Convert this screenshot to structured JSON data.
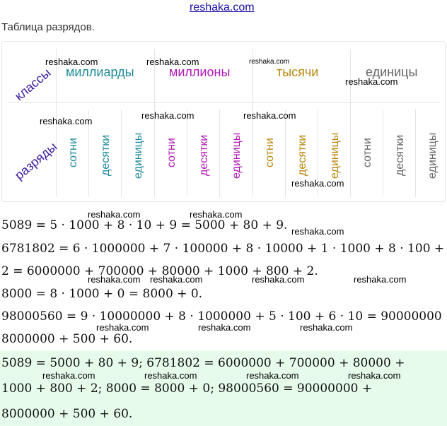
{
  "site": "reshaka.com",
  "caption": "Таблица разрядов.",
  "table": {
    "row_classes": "классы",
    "row_ranks": "разряды",
    "classes": [
      {
        "name": "миллиарды",
        "color": "#1e8a9b"
      },
      {
        "name": "миллионы",
        "color": "#b21ab5"
      },
      {
        "name": "тысячи",
        "color": "#b8860b"
      },
      {
        "name": "единицы",
        "color": "#666666"
      }
    ],
    "ranks": [
      "сотни",
      "десятки",
      "единицы"
    ]
  },
  "watermark": "reshaka.com",
  "lines": [
    "5089 = 5 · 1000 + 8 · 10 + 9 = 5000 + 80 + 9.",
    "6781802 = 6 · 1000000 + 7 · 100000 + 8 · 10000 + 1 · 1000 + 8 · 100 +",
    "2 = 6000000 + 700000 + 80000 + 1000 + 800 + 2.",
    "8000 = 8 · 1000 + 0 = 8000 + 0.",
    "98000560 = 9 · 10000000 + 8 · 1000000 + 5 · 100 + 6 · 10 = 90000000 +",
    "8000000 + 500 + 60."
  ],
  "answer": [
    "5089 = 5000 + 80 + 9; 6781802 = 6000000 + 700000 + 80000 +",
    "1000 + 800 + 2; 8000 = 8000 + 0; 98000560 = 90000000 +",
    "8000000 + 500 + 60."
  ]
}
